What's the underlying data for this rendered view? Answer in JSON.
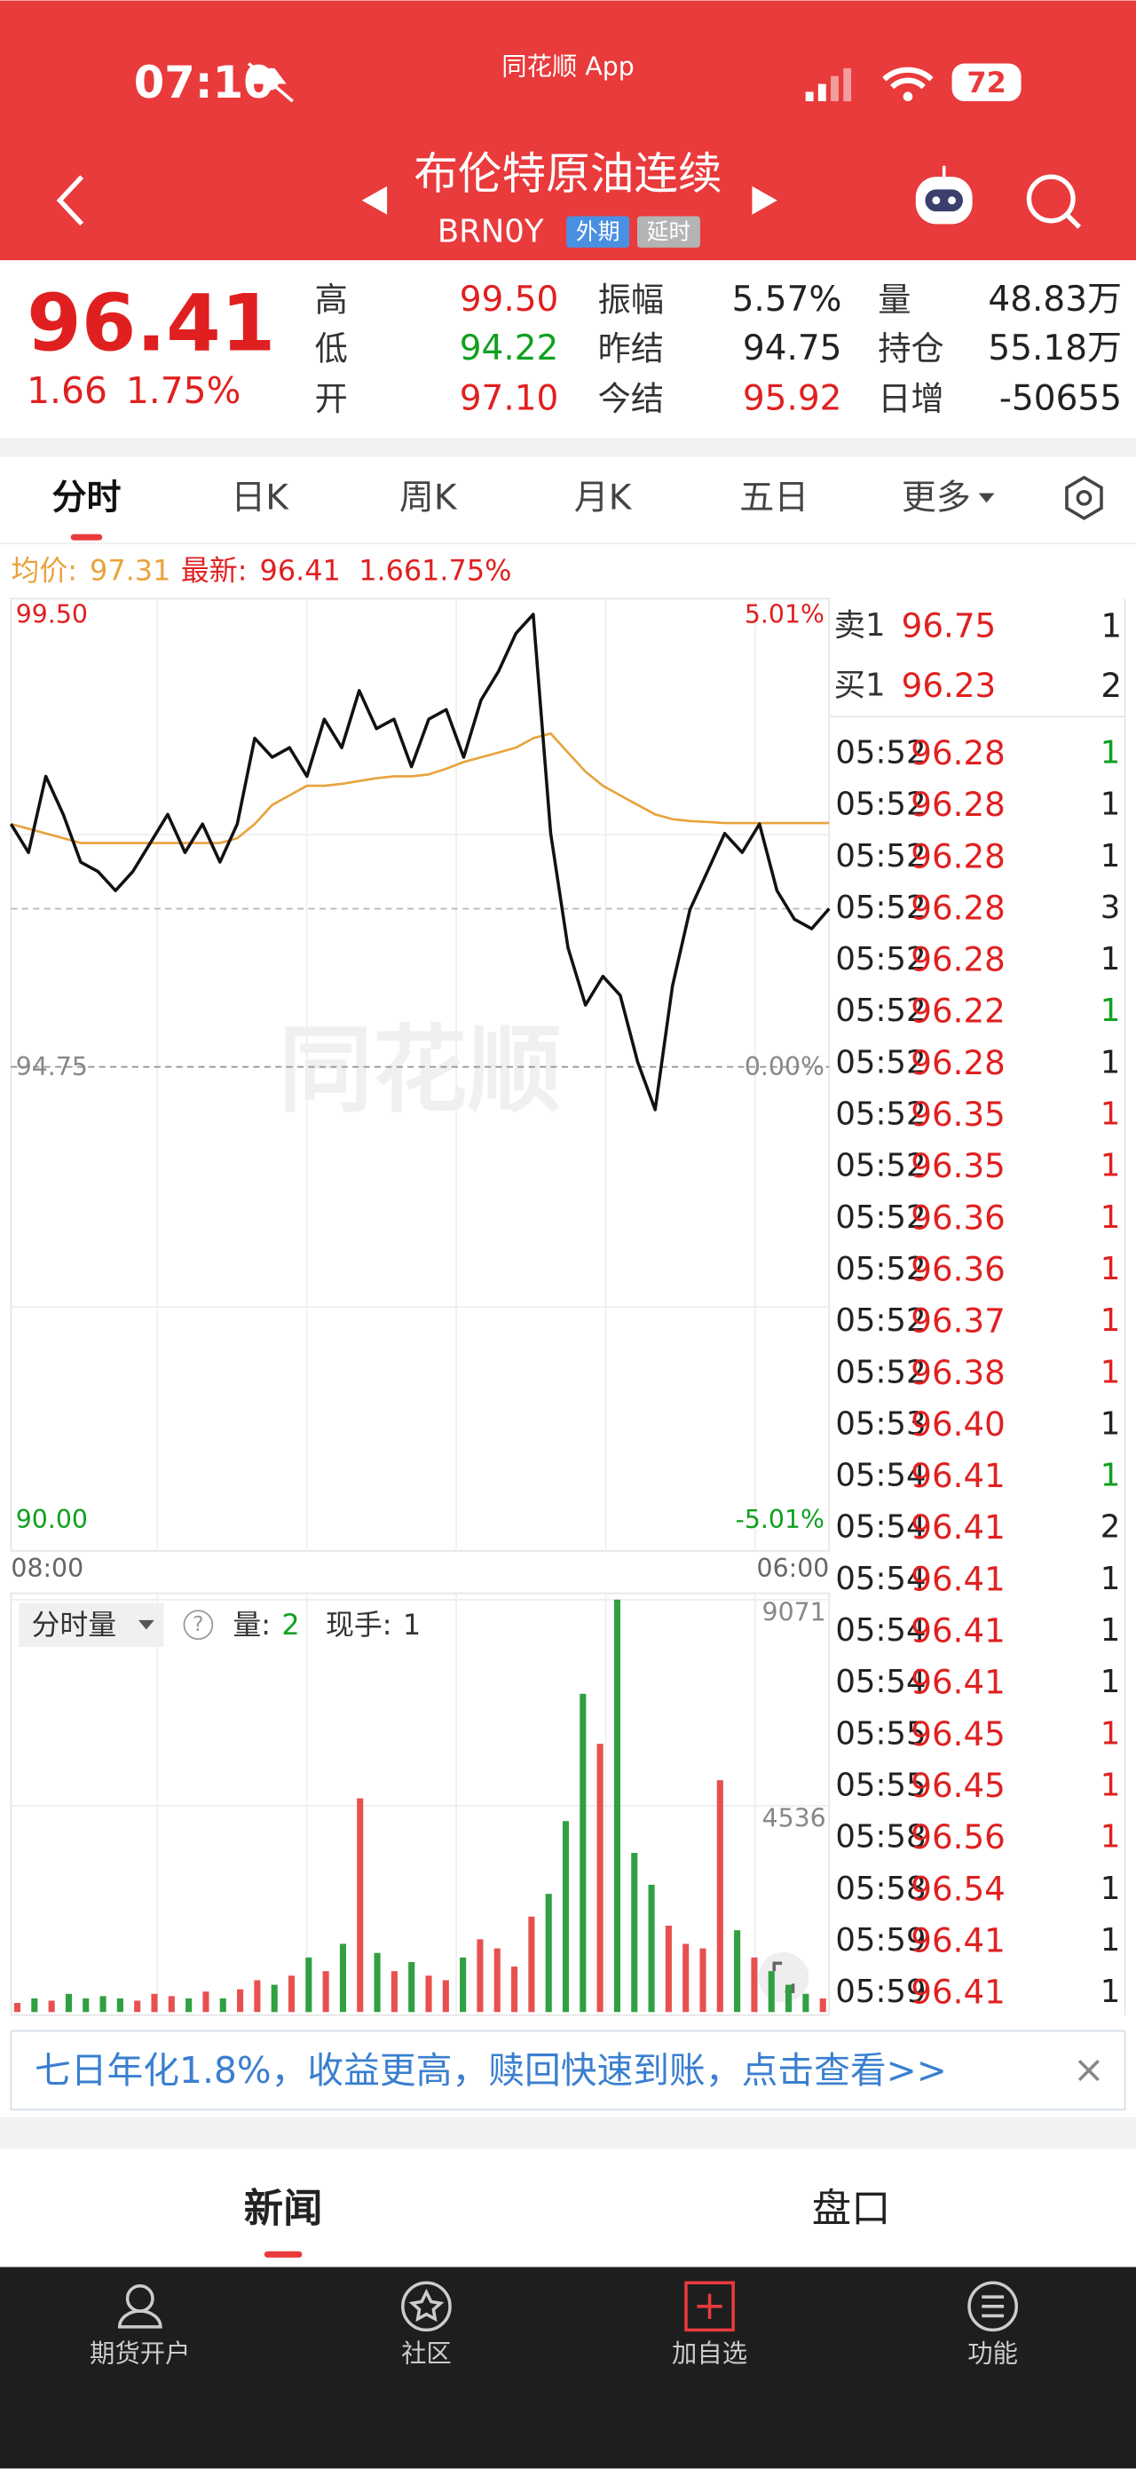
{
  "status": {
    "time": "07:10",
    "app": "同花顺 App",
    "battery": "72"
  },
  "header": {
    "title": "布伦特原油连续",
    "code": "BRN0Y",
    "tags": [
      "外期",
      "延时"
    ]
  },
  "quote": {
    "price": "96.41",
    "change": "1.66",
    "change_pct": "1.75%",
    "color": "#e02020",
    "stats": [
      {
        "label": "高",
        "value": "99.50",
        "color": "#e02020"
      },
      {
        "label": "低",
        "value": "94.22",
        "color": "#10a020"
      },
      {
        "label": "开",
        "value": "97.10",
        "color": "#e02020"
      },
      {
        "label": "振幅",
        "value": "5.57%",
        "color": "#222222"
      },
      {
        "label": "昨结",
        "value": "94.75",
        "color": "#222222"
      },
      {
        "label": "今结",
        "value": "95.92",
        "color": "#e02020"
      },
      {
        "label": "量",
        "value": "48.83万",
        "color": "#222222"
      },
      {
        "label": "持仓",
        "value": "55.18万",
        "color": "#222222"
      },
      {
        "label": "日增",
        "value": "-50655",
        "color": "#222222"
      }
    ]
  },
  "tabs": {
    "items": [
      "分时",
      "日K",
      "周K",
      "月K",
      "五日",
      "更多"
    ],
    "active": 0
  },
  "info": {
    "avg_label": "均价:",
    "avg": "97.31",
    "latest_label": "最新:",
    "latest": "96.41",
    "change": "1.66",
    "change_pct": "1.75%"
  },
  "chart_data": [
    {
      "type": "line",
      "categories": [
        "08:00",
        null,
        null,
        null,
        null,
        null,
        null,
        null,
        null,
        null,
        null,
        null,
        null,
        null,
        null,
        null,
        null,
        null,
        null,
        null,
        null,
        null,
        null,
        null,
        null,
        null,
        null,
        null,
        null,
        null,
        null,
        null,
        null,
        null,
        null,
        null,
        null,
        null,
        null,
        null,
        null,
        null,
        null,
        null,
        null,
        null,
        null,
        "06:00"
      ],
      "series": [
        {
          "color": "#111111",
          "values": [
            97.3,
            97.0,
            97.8,
            97.4,
            96.9,
            96.8,
            96.6,
            96.8,
            97.1,
            97.4,
            97.0,
            97.3,
            96.9,
            97.3,
            98.2,
            98.0,
            98.1,
            97.8,
            98.4,
            98.1,
            98.7,
            98.3,
            98.4,
            97.9,
            98.4,
            98.5,
            98.0,
            98.6,
            98.9,
            99.3,
            99.5,
            97.2,
            96.0,
            95.4,
            95.7,
            95.5,
            94.8,
            94.3,
            95.6,
            96.4,
            96.8,
            97.2,
            97.0,
            97.3,
            96.6,
            96.3,
            96.2,
            96.41
          ]
        },
        {
          "color": "#e8a33c",
          "values": [
            97.3,
            97.25,
            97.2,
            97.15,
            97.1,
            97.1,
            97.1,
            97.1,
            97.1,
            97.1,
            97.1,
            97.1,
            97.1,
            97.15,
            97.3,
            97.5,
            97.6,
            97.7,
            97.7,
            97.72,
            97.75,
            97.78,
            97.8,
            97.8,
            97.82,
            97.88,
            97.95,
            98.0,
            98.05,
            98.1,
            98.2,
            98.25,
            98.05,
            97.85,
            97.7,
            97.6,
            97.5,
            97.4,
            97.35,
            97.33,
            97.32,
            97.31,
            97.31,
            97.31,
            97.31,
            97.31,
            97.31,
            97.31
          ]
        }
      ],
      "ylim": [
        90.0,
        99.5
      ],
      "yticks": [
        {
          "value": 90.0,
          "label": "90.00"
        },
        {
          "value": 94.75,
          "label": "94.75"
        },
        {
          "value": 99.5,
          "label": "99.50"
        }
      ],
      "ytick_colors": [
        "#10a020",
        "#888888",
        "#e02020"
      ],
      "y2lim": [
        -5.01,
        5.01
      ],
      "y2ticks": [
        {
          "value": -5.01,
          "label": "-5.01%"
        },
        {
          "value": 0,
          "label": "0.00%"
        },
        {
          "value": 5.01,
          "label": "5.01%"
        }
      ]
    },
    {
      "type": "bar",
      "values": [
        200,
        300,
        250,
        400,
        300,
        350,
        300,
        250,
        400,
        350,
        300,
        450,
        300,
        500,
        700,
        600,
        800,
        1200,
        900,
        1500,
        4700,
        1300,
        900,
        1100,
        800,
        700,
        1200,
        1600,
        1400,
        1000,
        2100,
        2600,
        4200,
        7000,
        5900,
        9071,
        3500,
        2800,
        1900,
        1500,
        1400,
        5100,
        1800,
        1200,
        900,
        600,
        400,
        300
      ],
      "ylim": [
        0,
        9071
      ],
      "yticks": [
        4536,
        9071
      ],
      "colors": {
        "up": "#e85050",
        "down": "#30a040"
      },
      "legend": {
        "selector": "分时量",
        "help": "?",
        "volume_label": "量:",
        "volume": "2",
        "hand_label": "现手:",
        "hand": "1"
      }
    }
  ],
  "watermark": "同花顺",
  "order_book": [
    {
      "label": "卖1",
      "price": "96.75",
      "qty": "1"
    },
    {
      "label": "买1",
      "price": "96.23",
      "qty": "2"
    }
  ],
  "trades": [
    {
      "time": "05:52",
      "price": "96.28",
      "qty": "1",
      "qty_color": "#10a020"
    },
    {
      "time": "05:52",
      "price": "96.28",
      "qty": "1",
      "qty_color": "#222222"
    },
    {
      "time": "05:52",
      "price": "96.28",
      "qty": "1",
      "qty_color": "#222222"
    },
    {
      "time": "05:52",
      "price": "96.28",
      "qty": "3",
      "qty_color": "#222222"
    },
    {
      "time": "05:52",
      "price": "96.28",
      "qty": "1",
      "qty_color": "#222222"
    },
    {
      "time": "05:52",
      "price": "96.22",
      "qty": "1",
      "qty_color": "#10a020"
    },
    {
      "time": "05:52",
      "price": "96.28",
      "qty": "1",
      "qty_color": "#222222"
    },
    {
      "time": "05:52",
      "price": "96.35",
      "qty": "1",
      "qty_color": "#e02020"
    },
    {
      "time": "05:52",
      "price": "96.35",
      "qty": "1",
      "qty_color": "#e02020"
    },
    {
      "time": "05:52",
      "price": "96.36",
      "qty": "1",
      "qty_color": "#e02020"
    },
    {
      "time": "05:52",
      "price": "96.36",
      "qty": "1",
      "qty_color": "#e02020"
    },
    {
      "time": "05:52",
      "price": "96.37",
      "qty": "1",
      "qty_color": "#e02020"
    },
    {
      "time": "05:52",
      "price": "96.38",
      "qty": "1",
      "qty_color": "#e02020"
    },
    {
      "time": "05:53",
      "price": "96.40",
      "qty": "1",
      "qty_color": "#222222"
    },
    {
      "time": "05:54",
      "price": "96.41",
      "qty": "1",
      "qty_color": "#10a020"
    },
    {
      "time": "05:54",
      "price": "96.41",
      "qty": "2",
      "qty_color": "#222222"
    },
    {
      "time": "05:54",
      "price": "96.41",
      "qty": "1",
      "qty_color": "#222222"
    },
    {
      "time": "05:54",
      "price": "96.41",
      "qty": "1",
      "qty_color": "#222222"
    },
    {
      "time": "05:54",
      "price": "96.41",
      "qty": "1",
      "qty_color": "#222222"
    },
    {
      "time": "05:55",
      "price": "96.45",
      "qty": "1",
      "qty_color": "#e02020"
    },
    {
      "time": "05:55",
      "price": "96.45",
      "qty": "1",
      "qty_color": "#e02020"
    },
    {
      "time": "05:58",
      "price": "96.56",
      "qty": "1",
      "qty_color": "#e02020"
    },
    {
      "time": "05:58",
      "price": "96.54",
      "qty": "1",
      "qty_color": "#222222"
    },
    {
      "time": "05:59",
      "price": "96.41",
      "qty": "1",
      "qty_color": "#222222"
    },
    {
      "time": "05:59",
      "price": "96.41",
      "qty": "1",
      "qty_color": "#222222"
    }
  ],
  "banner": {
    "text": "七日年化1.8%，收益更高，赎回快速到账，点击查看>>",
    "close": "×"
  },
  "news_tabs": [
    "新闻",
    "盘口"
  ],
  "nav": [
    "期货开户",
    "社区",
    "加自选",
    "功能"
  ]
}
